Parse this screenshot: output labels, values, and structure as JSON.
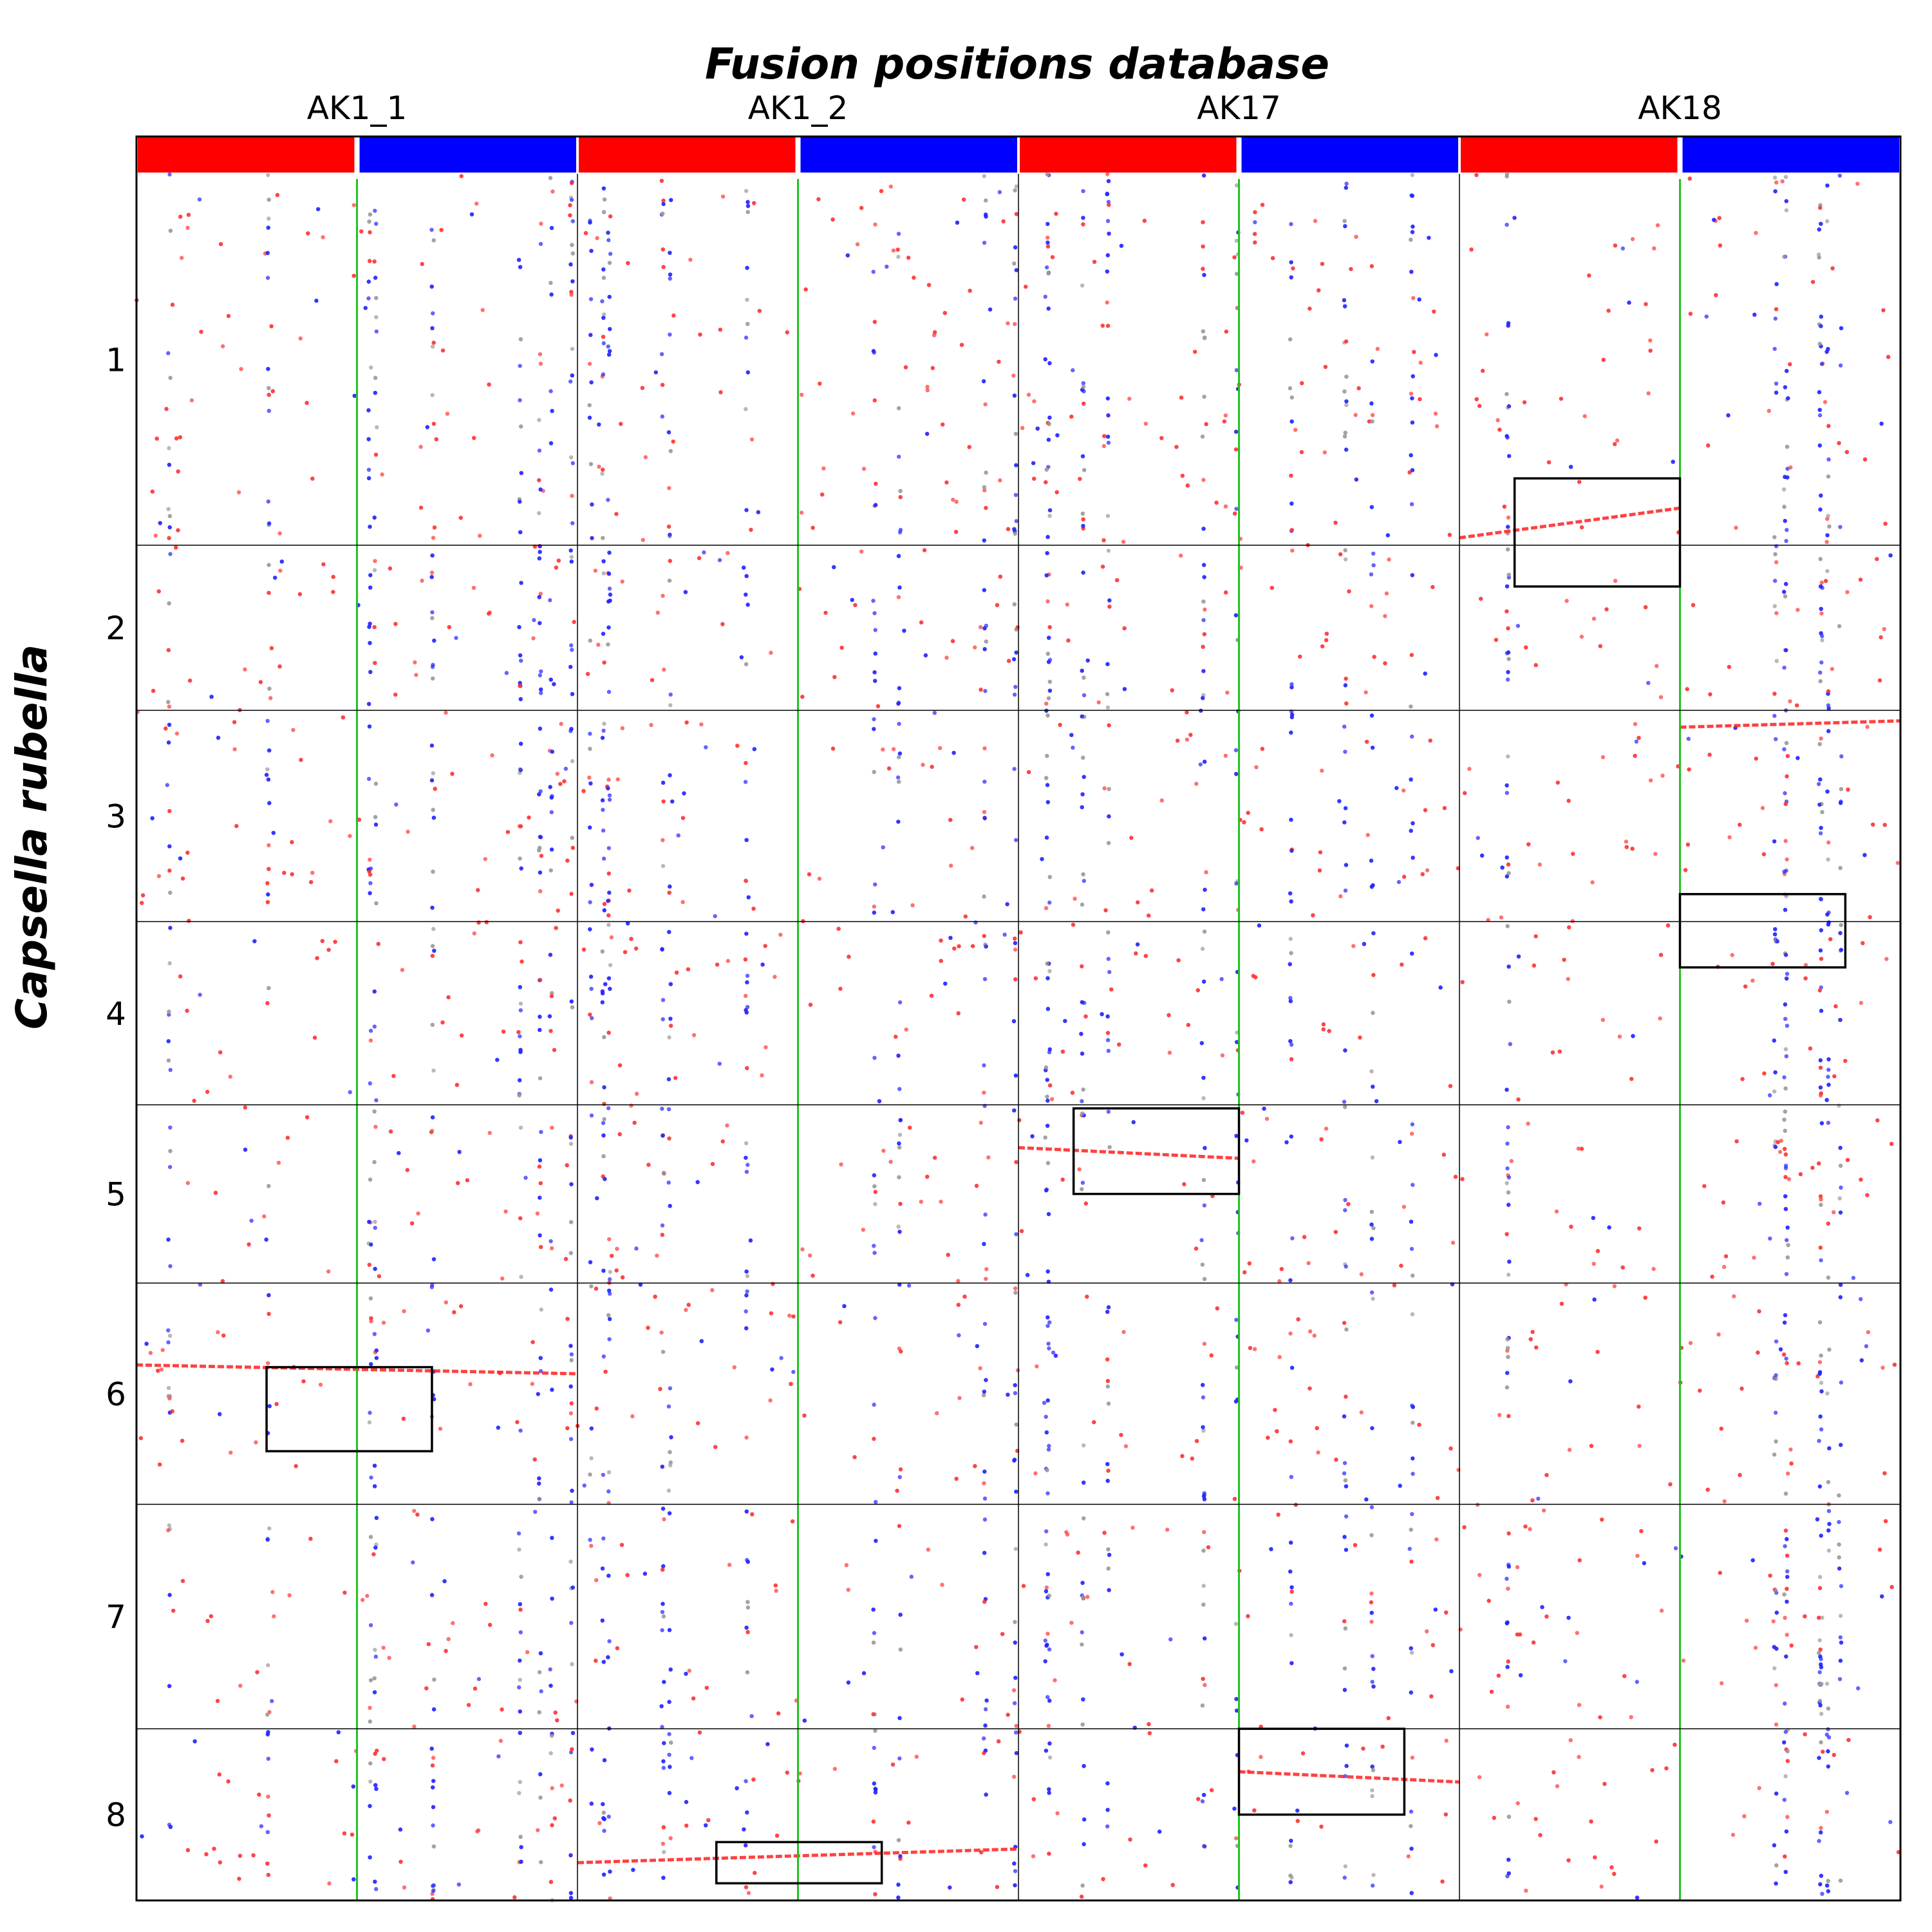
{
  "chart_data": {
    "type": "scatter",
    "title": "Fusion positions database",
    "xlabel": "",
    "ylabel": "Capsella rubella",
    "columns": [
      "AK1_1",
      "AK1_2",
      "AK17",
      "AK18"
    ],
    "column_widths": [
      1,
      1,
      1,
      1
    ],
    "column_bar_colors": [
      "#ff0000",
      "#0000ff"
    ],
    "column_split_fraction": 0.5,
    "rows": [
      "1",
      "2",
      "3",
      "4",
      "5",
      "6",
      "7",
      "8"
    ],
    "row_heights": [
      0.225,
      0.1,
      0.128,
      0.111,
      0.108,
      0.134,
      0.136,
      0.104
    ],
    "split_line_color": "#1fc41f",
    "grid_color": "#000000",
    "dot_colors": [
      "#ff3333",
      "#2222ff",
      "#9a9a9a"
    ],
    "dot_density": 1.0,
    "diagonal_series": [
      {
        "col": 3,
        "row": 0,
        "x_start": 0.0,
        "x_end": 0.5,
        "y_start": 0.98,
        "y_end": 0.9,
        "color": "#ff2020"
      },
      {
        "col": 3,
        "row": 2,
        "x_start": 0.5,
        "x_end": 1.0,
        "y_start": 0.08,
        "y_end": 0.05,
        "color": "#ff2020"
      },
      {
        "col": 2,
        "row": 4,
        "x_start": 0.0,
        "x_end": 0.5,
        "y_start": 0.24,
        "y_end": 0.3,
        "color": "#ff2020"
      },
      {
        "col": 0,
        "row": 5,
        "x_start": 0.0,
        "x_end": 1.0,
        "y_start": 0.37,
        "y_end": 0.41,
        "color": "#ff2020"
      },
      {
        "col": 2,
        "row": 7,
        "x_start": 0.5,
        "x_end": 1.0,
        "y_start": 0.25,
        "y_end": 0.31,
        "color": "#ff2020"
      },
      {
        "col": 1,
        "row": 7,
        "x_start": 0.0,
        "x_end": 1.0,
        "y_start": 0.78,
        "y_end": 0.7,
        "color": "#ff2020"
      },
      {
        "col": 2,
        "row": 0,
        "x_start": 0.6,
        "x_end": 1.0,
        "y_start": 0.0,
        "y_end": 0.0,
        "color": "#ff2020",
        "hidden": true
      }
    ],
    "highlight_boxes": [
      {
        "col": 3,
        "x0": 0.125,
        "x1": 0.5,
        "row": 0,
        "y0": 0.82,
        "row_end": 1,
        "y1": 0.25
      },
      {
        "col": 3,
        "x0": 0.5,
        "x1": 0.875,
        "row": 2,
        "y0": 0.87,
        "row_end": 3,
        "y1": 0.25
      },
      {
        "col": 2,
        "x0": 0.125,
        "x1": 0.5,
        "row": 4,
        "y0": 0.02,
        "row_end": 4,
        "y1": 0.5
      },
      {
        "col": 0,
        "x0": 0.295,
        "x1": 0.67,
        "row": 5,
        "y0": 0.38,
        "row_end": 5,
        "y1": 0.76
      },
      {
        "col": 2,
        "x0": 0.5,
        "x1": 0.875,
        "row": 7,
        "y0": 0.0,
        "row_end": 7,
        "y1": 0.5
      },
      {
        "col": 1,
        "x0": 0.315,
        "x1": 0.69,
        "row": 7,
        "y0": 0.66,
        "row_end": 7,
        "y1": 0.9
      }
    ],
    "grid": true,
    "legend": "none"
  }
}
